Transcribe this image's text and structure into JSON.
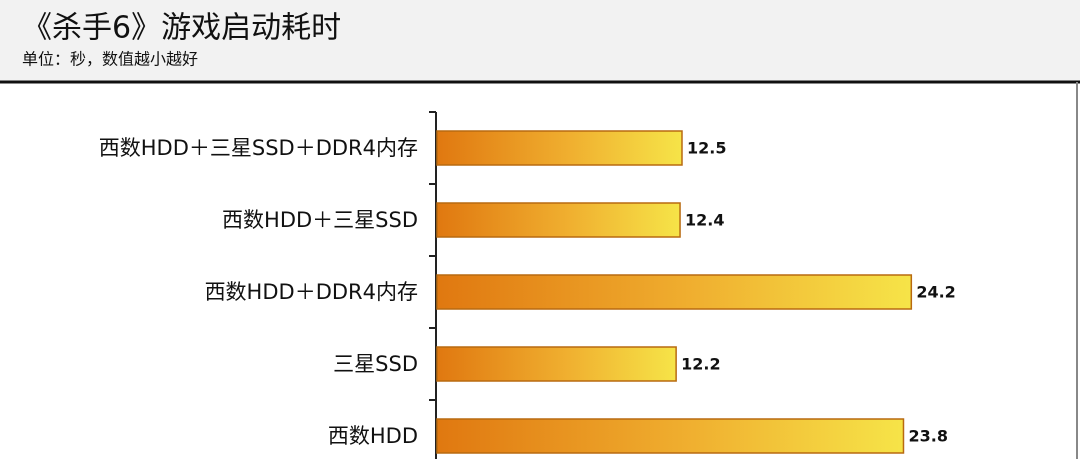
{
  "chart_data": {
    "type": "bar",
    "orientation": "horizontal",
    "title": "《杀手6》游戏启动耗时",
    "subtitle": "单位：秒，数值越小越好",
    "categories": [
      "西数HDD＋三星SSD＋DDR4内存",
      "西数HDD＋三星SSD",
      "西数HDD＋DDR4内存",
      "三星SSD",
      "西数HDD"
    ],
    "values": [
      12.5,
      12.4,
      24.2,
      12.2,
      23.8
    ],
    "color": "#f0a020"
  }
}
